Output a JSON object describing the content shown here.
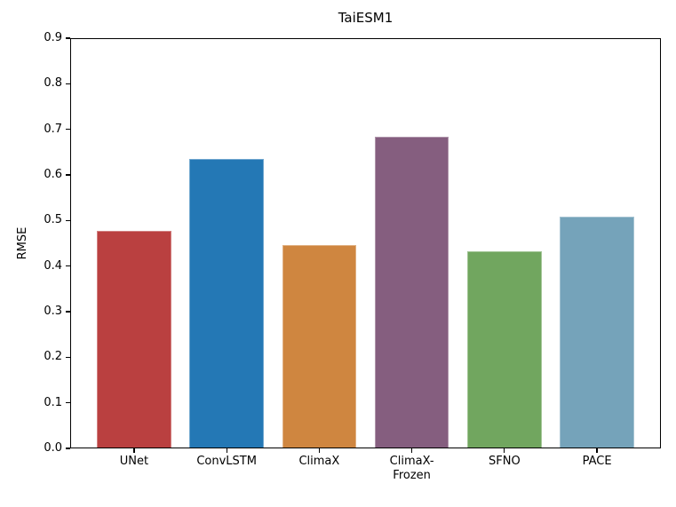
{
  "figure": {
    "title": "TaiESM1",
    "ylabel": "RMSE"
  },
  "chart_data": {
    "type": "bar",
    "title": "TaiESM1",
    "xlabel": "",
    "ylabel": "RMSE",
    "categories": [
      "UNet",
      "ConvLSTM",
      "ClimaX",
      "ClimaX-\nFrozen",
      "SFNO",
      "PACE"
    ],
    "values": [
      0.478,
      0.635,
      0.447,
      0.684,
      0.432,
      0.508
    ],
    "bar_colors": [
      "#ba4040",
      "#2478b5",
      "#cf8640",
      "#855e7f",
      "#71a65f",
      "#75a3ba"
    ],
    "ylim": [
      0.0,
      0.9
    ],
    "yticks": [
      0.0,
      0.1,
      0.2,
      0.3,
      0.4,
      0.5,
      0.6,
      0.7,
      0.8,
      0.9
    ],
    "ytick_labels": [
      "0.0",
      "0.1",
      "0.2",
      "0.3",
      "0.4",
      "0.5",
      "0.6",
      "0.7",
      "0.8",
      "0.9"
    ],
    "xlim": [
      -0.69,
      5.69
    ],
    "bar_width_fraction": 0.8,
    "grid": false,
    "legend": "none"
  }
}
